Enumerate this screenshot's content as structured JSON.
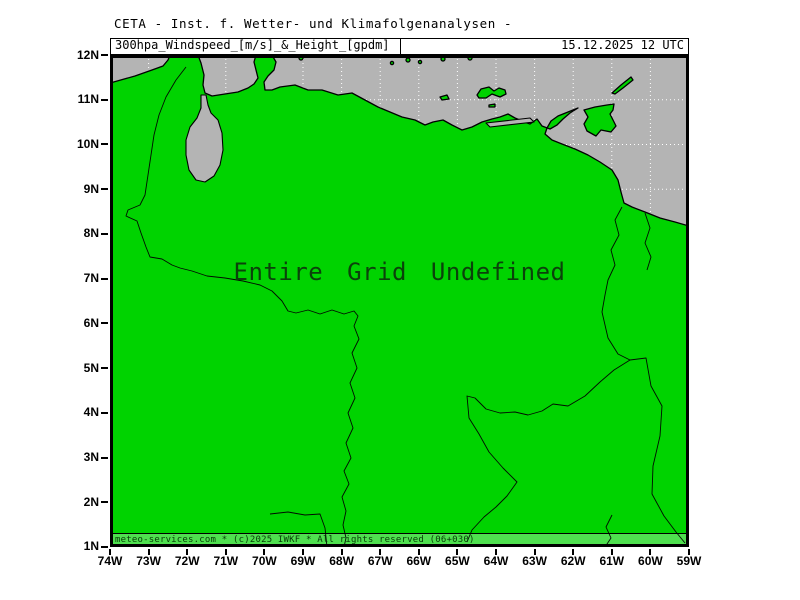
{
  "title": "CETA - Inst. f. Wetter- und Klimafolgenanalysen -",
  "header": {
    "variable": "300hpa_Windspeed_[m/s]_&_Height_[gpdm]",
    "datetime": "15.12.2025 12 UTC"
  },
  "map": {
    "status": "Entire Grid Undefined",
    "copyright": "meteo-services.com * (c)2025 IWKF * All rights reserved (06+030)",
    "region": "Venezuela / southern Caribbean"
  },
  "axes": {
    "lat": [
      "12N",
      "11N",
      "10N",
      "9N",
      "8N",
      "7N",
      "6N",
      "5N",
      "4N",
      "3N",
      "2N",
      "1N"
    ],
    "lon": [
      "74W",
      "73W",
      "72W",
      "71W",
      "70W",
      "69W",
      "68W",
      "67W",
      "66W",
      "65W",
      "64W",
      "63W",
      "62W",
      "61W",
      "60W",
      "59W"
    ]
  },
  "colors": {
    "land": "#00d300",
    "sea": "#b4b4b4",
    "footer_bar": "#4fe04f",
    "grid": "#ffffff",
    "frame": "#000000",
    "status_text": "#0b420b",
    "footer_text": "#063a06",
    "text": "#000000"
  }
}
